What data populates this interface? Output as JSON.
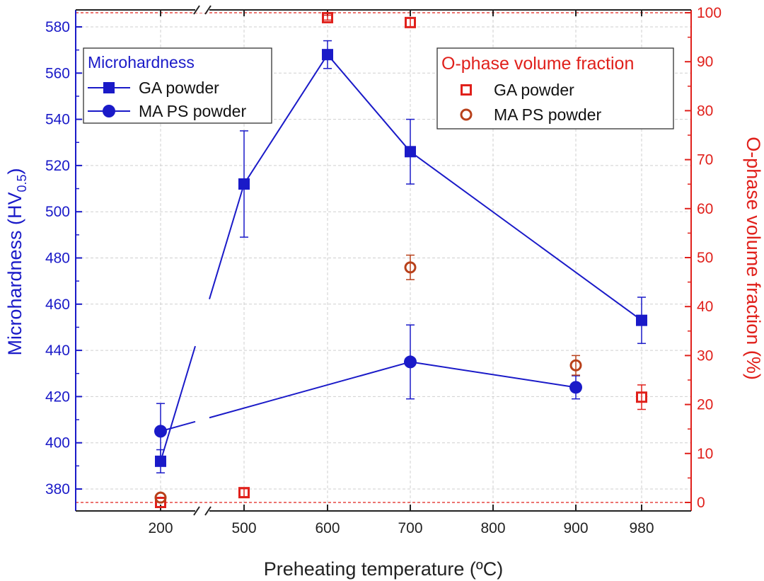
{
  "chart_data": {
    "type": "scatter",
    "xlabel": "Preheating temperature (ºC)",
    "ylabel_left_main": "Microhardness (HV",
    "ylabel_left_sub": "0.5",
    "ylabel_left_close": ")",
    "ylabel_right": "O-phase volume fraction (%)",
    "x_categories": [
      "200",
      "500",
      "600",
      "700",
      "800",
      "900",
      "980"
    ],
    "x_axis_break_between": [
      "200",
      "500"
    ],
    "ylim_left": [
      370,
      585
    ],
    "yticks_left": [
      "380",
      "400",
      "420",
      "440",
      "460",
      "480",
      "500",
      "520",
      "540",
      "560",
      "580"
    ],
    "ylim_right": [
      -2,
      101
    ],
    "yticks_right": [
      "0",
      "10",
      "20",
      "30",
      "40",
      "50",
      "60",
      "70",
      "80",
      "90",
      "100"
    ],
    "reference_lines_right": [
      0,
      100
    ],
    "grid": true,
    "legends": [
      {
        "title": "Microhardness",
        "placement": "top-left",
        "entries": [
          {
            "label": "GA powder",
            "marker": "filled-square",
            "color": "#1a1ac8"
          },
          {
            "label": "MA PS powder",
            "marker": "filled-circle",
            "color": "#1a1ac8"
          }
        ]
      },
      {
        "title": "O-phase volume fraction",
        "placement": "top-right",
        "entries": [
          {
            "label": "GA powder",
            "marker": "open-square",
            "color": "#e0201b"
          },
          {
            "label": "MA PS powder",
            "marker": "open-circle",
            "color": "#b8401a"
          }
        ]
      }
    ],
    "series": [
      {
        "name": "GA powder",
        "group": "Microhardness",
        "axis": "left",
        "marker": "filled-square",
        "color": "#1a1ac8",
        "line": true,
        "points": [
          {
            "x": "200",
            "y": 392,
            "err": 5
          },
          {
            "x": "500",
            "y": 512,
            "err": 23
          },
          {
            "x": "600",
            "y": 568,
            "err": 6
          },
          {
            "x": "700",
            "y": 526,
            "err": 14
          },
          {
            "x": "980",
            "y": 453,
            "err": 10
          }
        ]
      },
      {
        "name": "MA PS powder",
        "group": "Microhardness",
        "axis": "left",
        "marker": "filled-circle",
        "color": "#1a1ac8",
        "line": true,
        "points": [
          {
            "x": "200",
            "y": 405,
            "err": 12
          },
          {
            "x": "700",
            "y": 435,
            "err": 16
          },
          {
            "x": "900",
            "y": 424,
            "err": 5
          }
        ]
      },
      {
        "name": "GA powder",
        "group": "O-phase volume fraction",
        "axis": "right",
        "marker": "open-square",
        "color": "#e0201b",
        "line": false,
        "points": [
          {
            "x": "200",
            "y": 0,
            "err": 0
          },
          {
            "x": "500",
            "y": 2,
            "err": 0.8
          },
          {
            "x": "600",
            "y": 99,
            "err": 0.5
          },
          {
            "x": "700",
            "y": 98,
            "err": 1
          },
          {
            "x": "980",
            "y": 21.5,
            "err": 2.5
          }
        ]
      },
      {
        "name": "MA PS powder",
        "group": "O-phase volume fraction",
        "axis": "right",
        "marker": "open-circle",
        "color": "#b8401a",
        "line": false,
        "points": [
          {
            "x": "200",
            "y": 1,
            "err": 0
          },
          {
            "x": "700",
            "y": 48,
            "err": 2.5
          },
          {
            "x": "900",
            "y": 28,
            "err": 2
          }
        ]
      }
    ]
  }
}
